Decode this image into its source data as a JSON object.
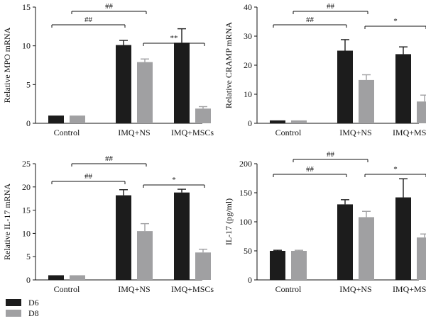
{
  "legend": {
    "items": [
      {
        "label": "D6",
        "color": "#1c1c1c"
      },
      {
        "label": "D8",
        "color": "#a0a0a2"
      }
    ]
  },
  "chart_data": [
    {
      "type": "bar",
      "categories": [
        "Control",
        "IMQ+NS",
        "IMQ+MSCs"
      ],
      "ylabel": "Relative MPO mRNA",
      "ylim": [
        0,
        15
      ],
      "yticks": [
        "0",
        "5",
        "10",
        "15"
      ],
      "series": [
        {
          "name": "D6",
          "values": [
            1.0,
            10.1,
            10.4
          ],
          "errors": [
            0,
            0.6,
            1.8
          ]
        },
        {
          "name": "D8",
          "values": [
            1.0,
            7.9,
            1.9
          ],
          "errors": [
            0,
            0.4,
            0.25
          ]
        }
      ],
      "annotations": [
        {
          "text": "##",
          "from": "Control",
          "to": "IMQ+NS"
        },
        {
          "text": "##",
          "from": "IMQ+NS",
          "to": "IMQ+NS"
        },
        {
          "text": "**",
          "from": "IMQ+NS",
          "to": "IMQ+MSCs"
        }
      ]
    },
    {
      "type": "bar",
      "categories": [
        "Control",
        "IMQ+NS",
        "IMQ+MSCs"
      ],
      "ylabel": "Relative CRAMP mRNA",
      "ylim": [
        0,
        40
      ],
      "yticks": [
        "0",
        "10",
        "20",
        "30",
        "40"
      ],
      "series": [
        {
          "name": "D6",
          "values": [
            1.0,
            25.0,
            23.8
          ],
          "errors": [
            0,
            3.8,
            2.5
          ]
        },
        {
          "name": "D8",
          "values": [
            1.0,
            14.9,
            7.5
          ],
          "errors": [
            0,
            1.8,
            2.2
          ]
        }
      ],
      "annotations": [
        {
          "text": "##",
          "from": "Control",
          "to": "IMQ+NS"
        },
        {
          "text": "##",
          "from": "IMQ+NS",
          "to": "IMQ+NS"
        },
        {
          "text": "*",
          "from": "IMQ+NS",
          "to": "IMQ+MSCs"
        }
      ]
    },
    {
      "type": "bar",
      "categories": [
        "Control",
        "IMQ+NS",
        "IMQ+MSCs"
      ],
      "ylabel": "Relative IL-17 mRNA",
      "ylim": [
        0,
        25
      ],
      "yticks": [
        "0",
        "5",
        "10",
        "15",
        "20",
        "25"
      ],
      "series": [
        {
          "name": "D6",
          "values": [
            1.0,
            18.2,
            18.8
          ],
          "errors": [
            0,
            1.2,
            0.7
          ]
        },
        {
          "name": "D8",
          "values": [
            1.0,
            10.5,
            5.9
          ],
          "errors": [
            0,
            1.6,
            0.7
          ]
        }
      ],
      "annotations": [
        {
          "text": "##",
          "from": "Control",
          "to": "IMQ+NS"
        },
        {
          "text": "##",
          "from": "IMQ+NS",
          "to": "IMQ+NS"
        },
        {
          "text": "*",
          "from": "IMQ+NS",
          "to": "IMQ+MSCs"
        }
      ]
    },
    {
      "type": "bar",
      "categories": [
        "Control",
        "IMQ+NS",
        "IMQ+MSCs"
      ],
      "ylabel": "IL-17 (pg/ml)",
      "ylim": [
        0,
        200
      ],
      "yticks": [
        "0",
        "50",
        "100",
        "150",
        "200"
      ],
      "series": [
        {
          "name": "D6",
          "values": [
            50,
            130,
            142
          ],
          "errors": [
            1,
            8,
            32
          ]
        },
        {
          "name": "D8",
          "values": [
            50,
            108,
            73
          ],
          "errors": [
            1,
            10,
            6
          ]
        }
      ],
      "annotations": [
        {
          "text": "##",
          "from": "Control",
          "to": "IMQ+NS"
        },
        {
          "text": "##",
          "from": "IMQ+NS",
          "to": "IMQ+NS"
        },
        {
          "text": "*",
          "from": "IMQ+NS",
          "to": "IMQ+MSCs"
        }
      ]
    }
  ]
}
